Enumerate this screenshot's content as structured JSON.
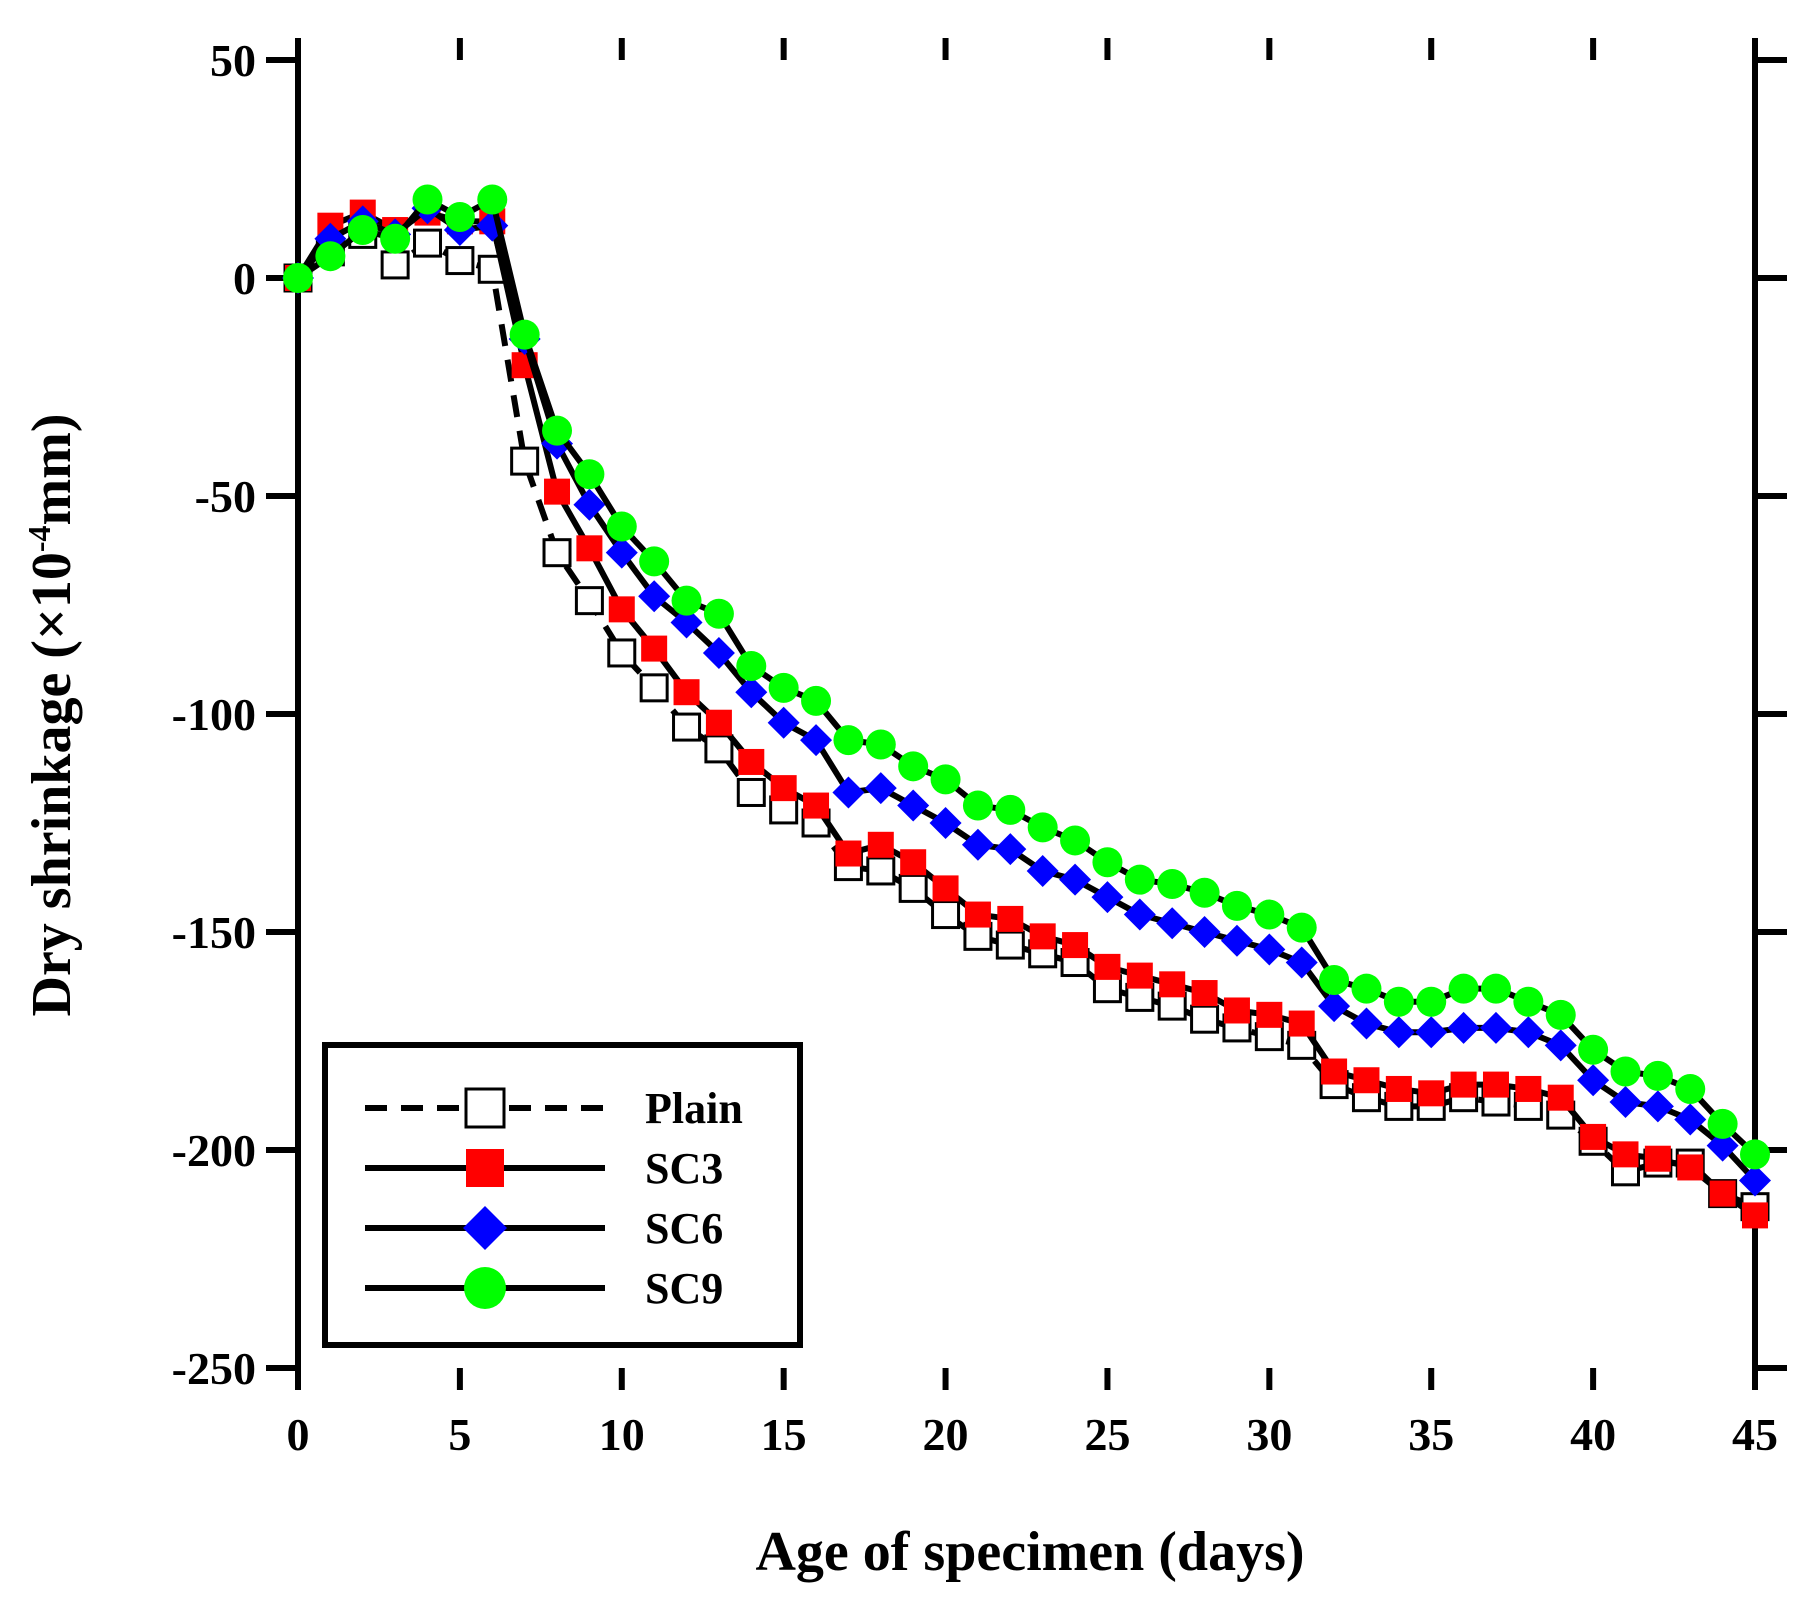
{
  "chart_data": {
    "type": "line",
    "title": "",
    "xlabel": "Age of specimen (days)",
    "ylabel_main": "Dry shrinkage (×10",
    "ylabel_sup": "-4",
    "ylabel_unit": "mm)",
    "xlim": [
      0,
      45
    ],
    "ylim": [
      -250,
      50
    ],
    "xticks": [
      0,
      5,
      10,
      15,
      20,
      25,
      30,
      35,
      40,
      45
    ],
    "yticks": [
      50,
      0,
      -50,
      -100,
      -150,
      -200,
      -250
    ],
    "grid": false,
    "legend_position": "bottom-left",
    "x": [
      0,
      1,
      2,
      3,
      4,
      5,
      6,
      7,
      8,
      9,
      10,
      11,
      12,
      13,
      14,
      15,
      16,
      17,
      18,
      19,
      20,
      21,
      22,
      23,
      24,
      25,
      26,
      27,
      28,
      29,
      30,
      31,
      32,
      33,
      34,
      35,
      36,
      37,
      38,
      39,
      40,
      41,
      42,
      43,
      44,
      45
    ],
    "series": [
      {
        "name": "Plain",
        "marker": "square-open",
        "line": "dashed",
        "color": "#ffffff",
        "values": [
          0,
          6,
          10,
          3,
          8,
          4,
          2,
          -42,
          -63,
          -74,
          -86,
          -94,
          -103,
          -108,
          -118,
          -122,
          -125,
          -135,
          -136,
          -140,
          -146,
          -151,
          -153,
          -155,
          -157,
          -163,
          -165,
          -167,
          -170,
          -172,
          -174,
          -176,
          -185,
          -188,
          -190,
          -190,
          -188,
          -189,
          -190,
          -192,
          -198,
          -205,
          -203,
          -203,
          -210,
          -213
        ]
      },
      {
        "name": "SC3",
        "marker": "square",
        "line": "solid",
        "color": "#ff0000",
        "values": [
          0,
          12,
          15,
          11,
          15,
          13,
          13,
          -20,
          -49,
          -62,
          -76,
          -85,
          -95,
          -102,
          -111,
          -117,
          -121,
          -132,
          -130,
          -134,
          -140,
          -146,
          -147,
          -151,
          -153,
          -158,
          -160,
          -162,
          -164,
          -168,
          -169,
          -171,
          -182,
          -184,
          -186,
          -187,
          -185,
          -185,
          -186,
          -188,
          -197,
          -201,
          -202,
          -204,
          -210,
          -215
        ]
      },
      {
        "name": "SC6",
        "marker": "diamond",
        "line": "solid",
        "color": "#0000ff",
        "values": [
          0,
          9,
          13,
          10,
          16,
          11,
          12,
          -14,
          -38,
          -52,
          -63,
          -73,
          -79,
          -86,
          -95,
          -102,
          -106,
          -118,
          -117,
          -121,
          -125,
          -130,
          -131,
          -136,
          -138,
          -142,
          -146,
          -148,
          -150,
          -152,
          -154,
          -157,
          -167,
          -171,
          -173,
          -173,
          -172,
          -172,
          -173,
          -176,
          -184,
          -189,
          -190,
          -193,
          -199,
          -207
        ]
      },
      {
        "name": "SC9",
        "marker": "circle",
        "line": "solid",
        "color": "#00ff00",
        "values": [
          0,
          5,
          11,
          9,
          18,
          14,
          18,
          -13,
          -35,
          -45,
          -57,
          -65,
          -74,
          -77,
          -89,
          -94,
          -97,
          -106,
          -107,
          -112,
          -115,
          -121,
          -122,
          -126,
          -129,
          -134,
          -138,
          -139,
          -141,
          -144,
          -146,
          -149,
          -161,
          -163,
          -166,
          -166,
          -163,
          -163,
          -166,
          -169,
          -177,
          -182,
          -183,
          -186,
          -194,
          -201
        ]
      }
    ]
  }
}
